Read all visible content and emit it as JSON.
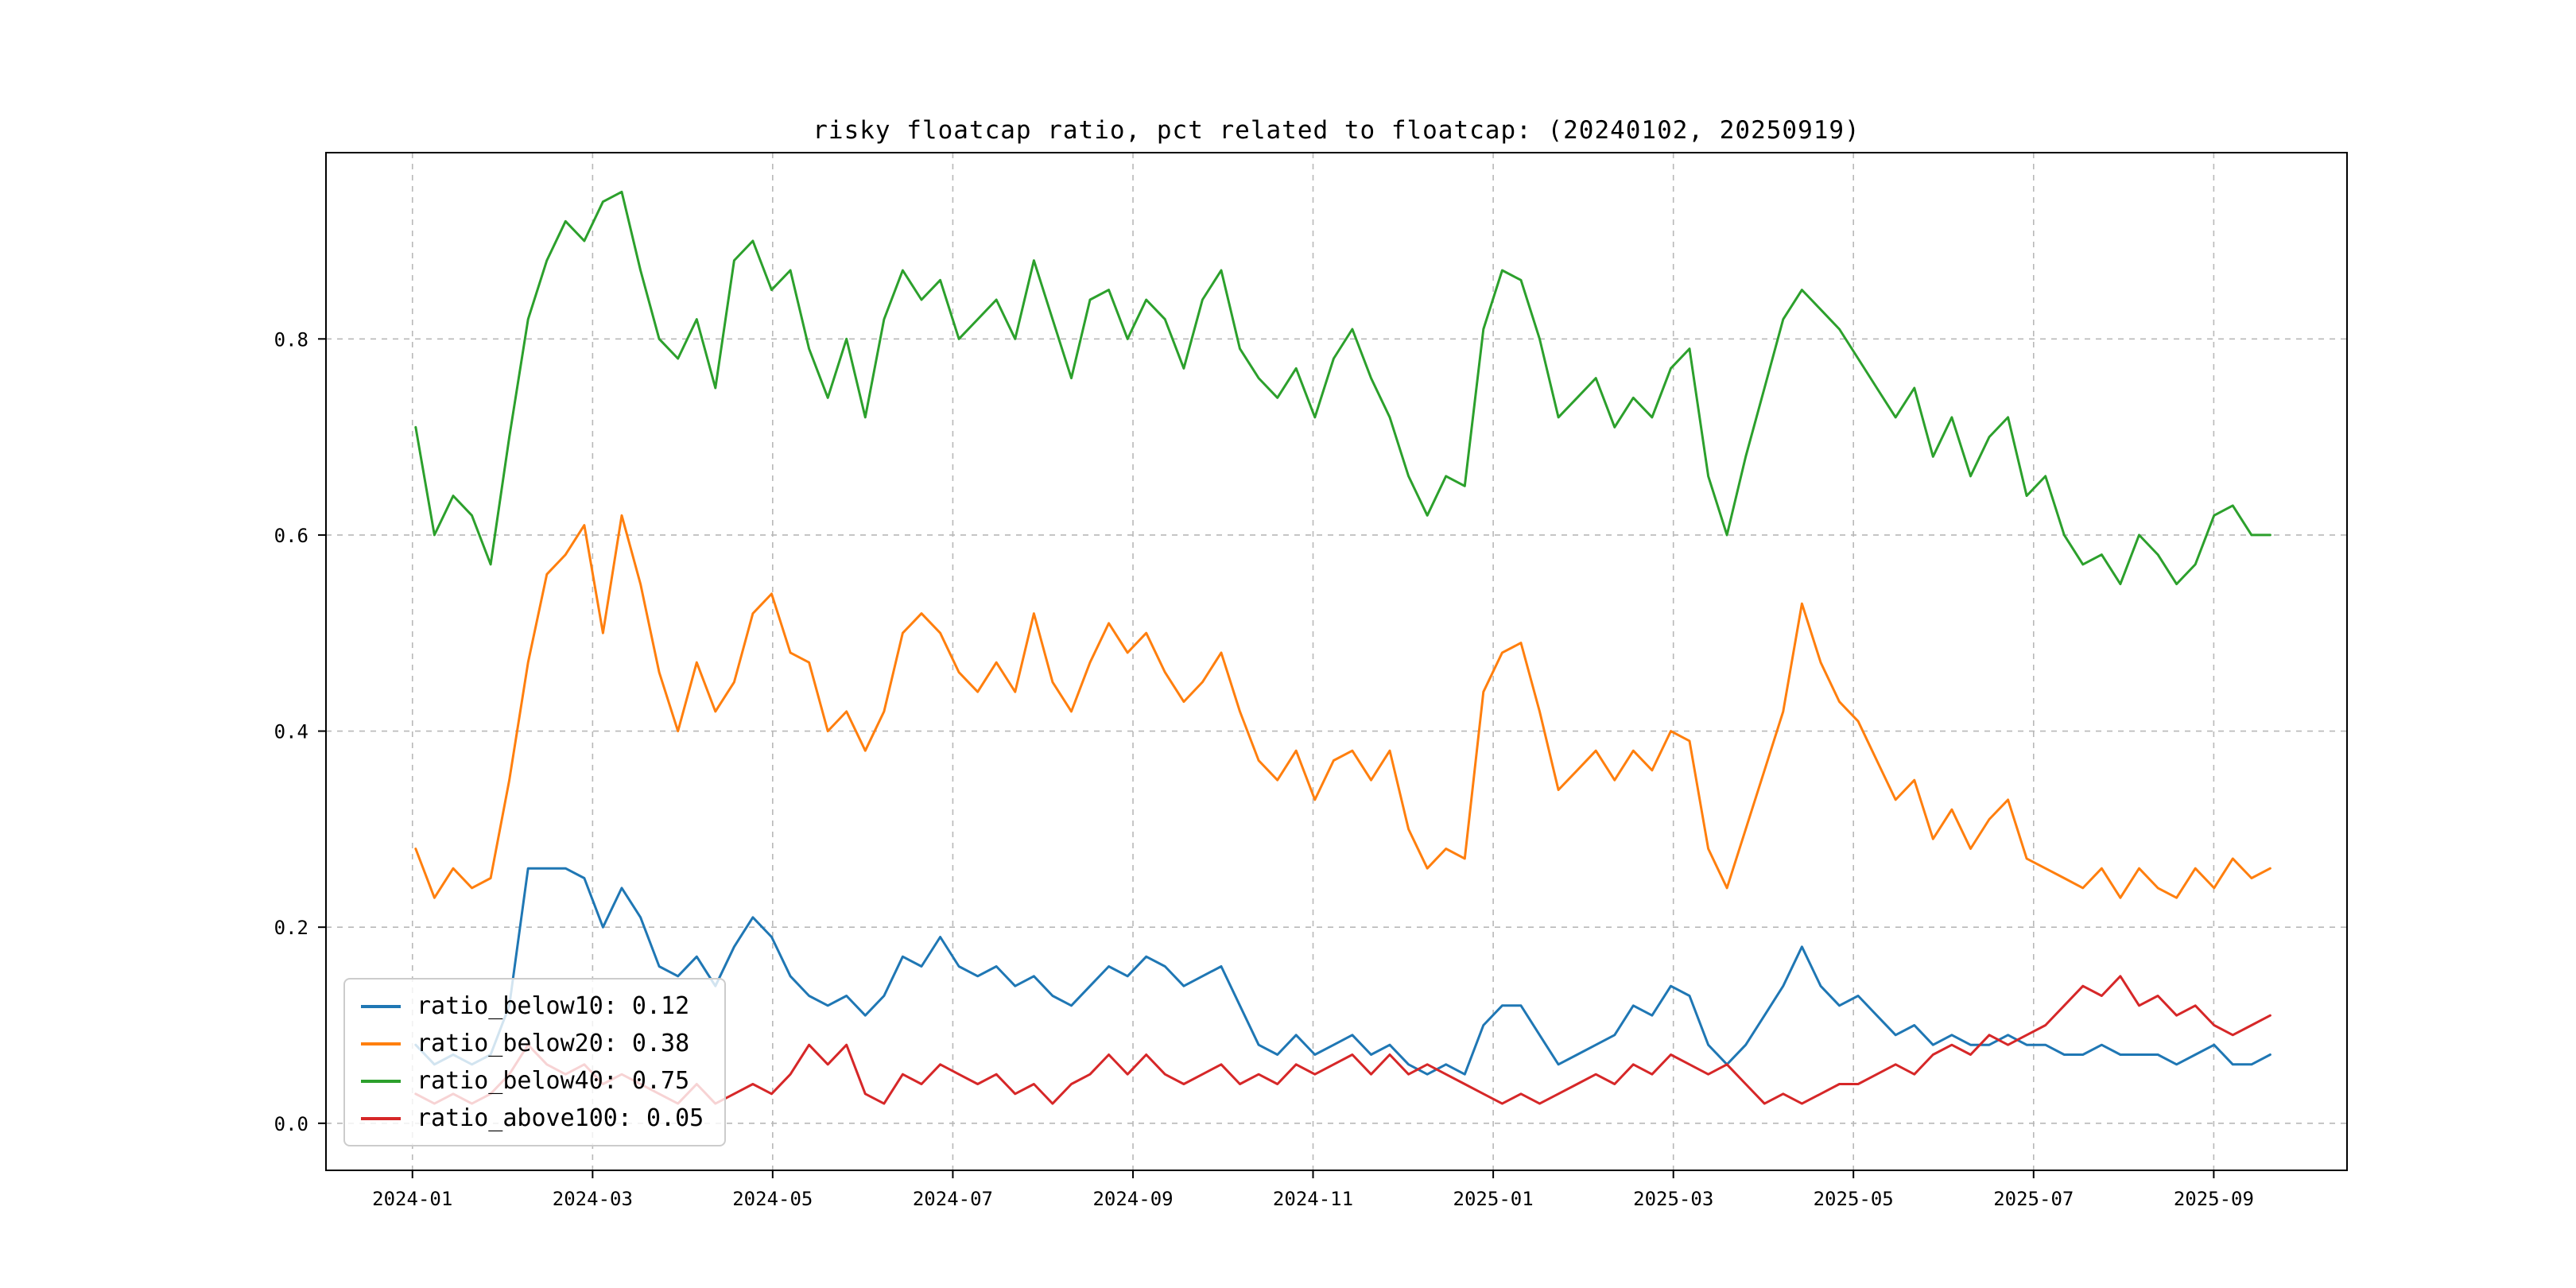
{
  "figure": {
    "background": "#ffffff",
    "border_color": "#000000"
  },
  "chart_data": {
    "type": "line",
    "title": "risky floatcap ratio, pct related to floatcap: (20240102, 20250919)",
    "xlabel": "",
    "ylabel": "",
    "xlim": [
      2023.92,
      2025.79
    ],
    "ylim": [
      -0.048,
      0.99
    ],
    "grid": true,
    "grid_style": "dashed",
    "grid_color": "#b8b8b8",
    "legend_position": "lower left",
    "x_ticks": {
      "labels": [
        "2024-01",
        "2024-03",
        "2024-05",
        "2024-07",
        "2024-09",
        "2024-11",
        "2025-01",
        "2025-03",
        "2025-05",
        "2025-07",
        "2025-09"
      ],
      "values": [
        2024.0,
        2024.1667,
        2024.3333,
        2024.5,
        2024.6667,
        2024.8333,
        2025.0,
        2025.1667,
        2025.3333,
        2025.5,
        2025.6667
      ]
    },
    "y_ticks": {
      "labels": [
        "0.0",
        "0.2",
        "0.4",
        "0.6",
        "0.8"
      ],
      "values": [
        0.0,
        0.2,
        0.4,
        0.6,
        0.8
      ]
    },
    "x_start": 2024.003,
    "x_step": 0.017333,
    "series": [
      {
        "name": "ratio_below10",
        "color": "#1f77b4",
        "legend_label": "ratio_below10: 0.12",
        "values": [
          0.08,
          0.06,
          0.07,
          0.06,
          0.07,
          0.12,
          0.26,
          0.26,
          0.26,
          0.25,
          0.2,
          0.24,
          0.21,
          0.16,
          0.15,
          0.17,
          0.14,
          0.18,
          0.21,
          0.19,
          0.15,
          0.13,
          0.12,
          0.13,
          0.11,
          0.13,
          0.17,
          0.16,
          0.19,
          0.16,
          0.15,
          0.16,
          0.14,
          0.15,
          0.13,
          0.12,
          0.14,
          0.16,
          0.15,
          0.17,
          0.16,
          0.14,
          0.15,
          0.16,
          0.12,
          0.08,
          0.07,
          0.09,
          0.07,
          0.08,
          0.09,
          0.07,
          0.08,
          0.06,
          0.05,
          0.06,
          0.05,
          0.1,
          0.12,
          0.12,
          0.09,
          0.06,
          0.07,
          0.08,
          0.09,
          0.12,
          0.11,
          0.14,
          0.13,
          0.08,
          0.06,
          0.08,
          0.11,
          0.14,
          0.18,
          0.14,
          0.12,
          0.13,
          0.11,
          0.09,
          0.1,
          0.08,
          0.09,
          0.08,
          0.08,
          0.09,
          0.08,
          0.08,
          0.07,
          0.07,
          0.08,
          0.07,
          0.07,
          0.07,
          0.06,
          0.07,
          0.08,
          0.06,
          0.06,
          0.07
        ]
      },
      {
        "name": "ratio_below20",
        "color": "#ff7f0e",
        "legend_label": "ratio_below20: 0.38",
        "values": [
          0.28,
          0.23,
          0.26,
          0.24,
          0.25,
          0.35,
          0.47,
          0.56,
          0.58,
          0.61,
          0.5,
          0.62,
          0.55,
          0.46,
          0.4,
          0.47,
          0.42,
          0.45,
          0.52,
          0.54,
          0.48,
          0.47,
          0.4,
          0.42,
          0.38,
          0.42,
          0.5,
          0.52,
          0.5,
          0.46,
          0.44,
          0.47,
          0.44,
          0.52,
          0.45,
          0.42,
          0.47,
          0.51,
          0.48,
          0.5,
          0.46,
          0.43,
          0.45,
          0.48,
          0.42,
          0.37,
          0.35,
          0.38,
          0.33,
          0.37,
          0.38,
          0.35,
          0.38,
          0.3,
          0.26,
          0.28,
          0.27,
          0.44,
          0.48,
          0.49,
          0.42,
          0.34,
          0.36,
          0.38,
          0.35,
          0.38,
          0.36,
          0.4,
          0.39,
          0.28,
          0.24,
          0.3,
          0.36,
          0.42,
          0.53,
          0.47,
          0.43,
          0.41,
          0.37,
          0.33,
          0.35,
          0.29,
          0.32,
          0.28,
          0.31,
          0.33,
          0.27,
          0.26,
          0.25,
          0.24,
          0.26,
          0.23,
          0.26,
          0.24,
          0.23,
          0.26,
          0.24,
          0.27,
          0.25,
          0.26
        ]
      },
      {
        "name": "ratio_below40",
        "color": "#2ca02c",
        "legend_label": "ratio_below40: 0.75",
        "values": [
          0.71,
          0.6,
          0.64,
          0.62,
          0.57,
          0.7,
          0.82,
          0.88,
          0.92,
          0.9,
          0.94,
          0.95,
          0.87,
          0.8,
          0.78,
          0.82,
          0.75,
          0.88,
          0.9,
          0.85,
          0.87,
          0.79,
          0.74,
          0.8,
          0.72,
          0.82,
          0.87,
          0.84,
          0.86,
          0.8,
          0.82,
          0.84,
          0.8,
          0.88,
          0.82,
          0.76,
          0.84,
          0.85,
          0.8,
          0.84,
          0.82,
          0.77,
          0.84,
          0.87,
          0.79,
          0.76,
          0.74,
          0.77,
          0.72,
          0.78,
          0.81,
          0.76,
          0.72,
          0.66,
          0.62,
          0.66,
          0.65,
          0.81,
          0.87,
          0.86,
          0.8,
          0.72,
          0.74,
          0.76,
          0.71,
          0.74,
          0.72,
          0.77,
          0.79,
          0.66,
          0.6,
          0.68,
          0.75,
          0.82,
          0.85,
          0.83,
          0.81,
          0.78,
          0.75,
          0.72,
          0.75,
          0.68,
          0.72,
          0.66,
          0.7,
          0.72,
          0.64,
          0.66,
          0.6,
          0.57,
          0.58,
          0.55,
          0.6,
          0.58,
          0.55,
          0.57,
          0.62,
          0.63,
          0.6,
          0.6
        ]
      },
      {
        "name": "ratio_above100",
        "color": "#d62728",
        "legend_label": "ratio_above100: 0.05",
        "values": [
          0.03,
          0.02,
          0.03,
          0.02,
          0.03,
          0.05,
          0.08,
          0.06,
          0.05,
          0.06,
          0.04,
          0.05,
          0.04,
          0.03,
          0.02,
          0.04,
          0.02,
          0.03,
          0.04,
          0.03,
          0.05,
          0.08,
          0.06,
          0.08,
          0.03,
          0.02,
          0.05,
          0.04,
          0.06,
          0.05,
          0.04,
          0.05,
          0.03,
          0.04,
          0.02,
          0.04,
          0.05,
          0.07,
          0.05,
          0.07,
          0.05,
          0.04,
          0.05,
          0.06,
          0.04,
          0.05,
          0.04,
          0.06,
          0.05,
          0.06,
          0.07,
          0.05,
          0.07,
          0.05,
          0.06,
          0.05,
          0.04,
          0.03,
          0.02,
          0.03,
          0.02,
          0.03,
          0.04,
          0.05,
          0.04,
          0.06,
          0.05,
          0.07,
          0.06,
          0.05,
          0.06,
          0.04,
          0.02,
          0.03,
          0.02,
          0.03,
          0.04,
          0.04,
          0.05,
          0.06,
          0.05,
          0.07,
          0.08,
          0.07,
          0.09,
          0.08,
          0.09,
          0.1,
          0.12,
          0.14,
          0.13,
          0.15,
          0.12,
          0.13,
          0.11,
          0.12,
          0.1,
          0.09,
          0.1,
          0.11
        ]
      }
    ]
  }
}
